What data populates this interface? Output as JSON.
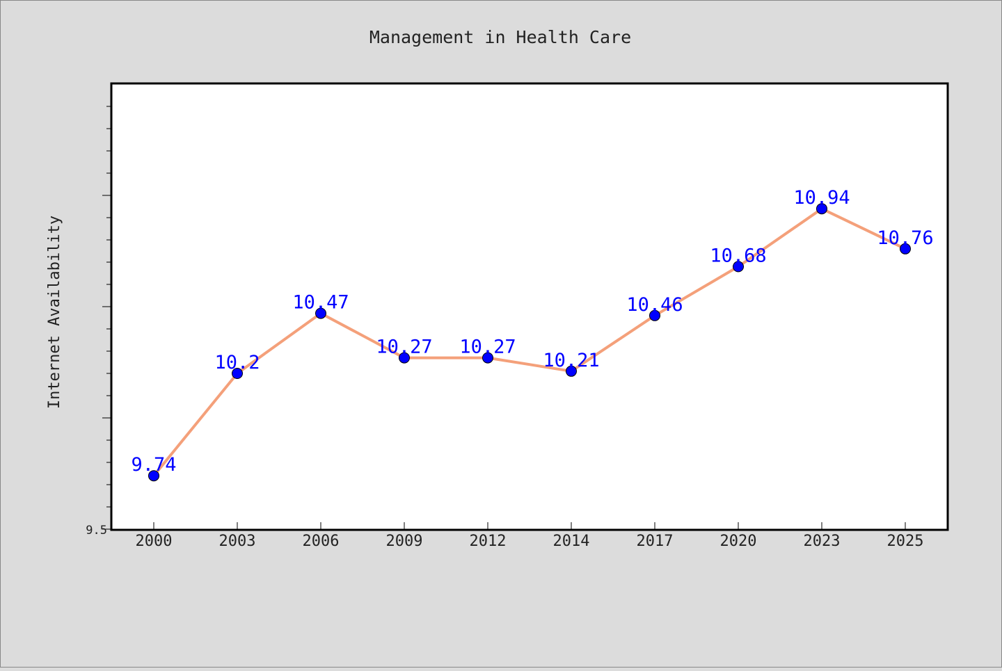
{
  "chart_data": {
    "type": "line",
    "title": "Management in Health Care",
    "xlabel": "",
    "ylabel": "Internet Availability",
    "categories": [
      "2000",
      "2003",
      "2006",
      "2009",
      "2012",
      "2014",
      "2017",
      "2020",
      "2023",
      "2025"
    ],
    "series": [
      {
        "values": [
          9.74,
          10.2,
          10.47,
          10.27,
          10.27,
          10.21,
          10.46,
          10.68,
          10.94,
          10.76
        ],
        "labels": [
          "9.74",
          "10.2",
          "10.47",
          "10.27",
          "10.27",
          "10.21",
          "10.46",
          "10.68",
          "10.94",
          "10.76"
        ]
      }
    ],
    "ylim": [
      9.5,
      11.5
    ],
    "y_tick_labels": [
      "9.5"
    ],
    "grid": false,
    "colors": {
      "line": "#f4a07a",
      "marker": "#0000ff",
      "data_label": "#0000ff",
      "plot_background": "#ffffff",
      "figure_background": "#dcdcdc",
      "text": "#222222"
    }
  }
}
